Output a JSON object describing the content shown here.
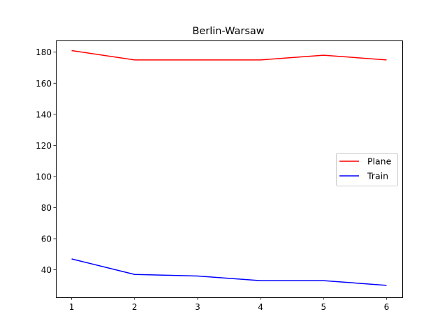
{
  "chart_data": {
    "type": "line",
    "title": "Berlin-Warsaw",
    "xlabel": "",
    "ylabel": "",
    "x": [
      1,
      2,
      3,
      4,
      5,
      6
    ],
    "xlim": [
      0.75,
      6.25
    ],
    "ylim": [
      22.3,
      187.5
    ],
    "xticks": [
      1,
      2,
      3,
      4,
      5,
      6
    ],
    "yticks": [
      40,
      60,
      80,
      100,
      120,
      140,
      160,
      180
    ],
    "grid": false,
    "legend_position": "center-right",
    "series": [
      {
        "name": "Plane",
        "color": "#ff0000",
        "values": [
          181,
          175,
          175,
          175,
          178,
          175
        ]
      },
      {
        "name": "Train",
        "color": "#0000ff",
        "values": [
          47,
          37,
          36,
          33,
          33,
          30
        ]
      }
    ]
  }
}
